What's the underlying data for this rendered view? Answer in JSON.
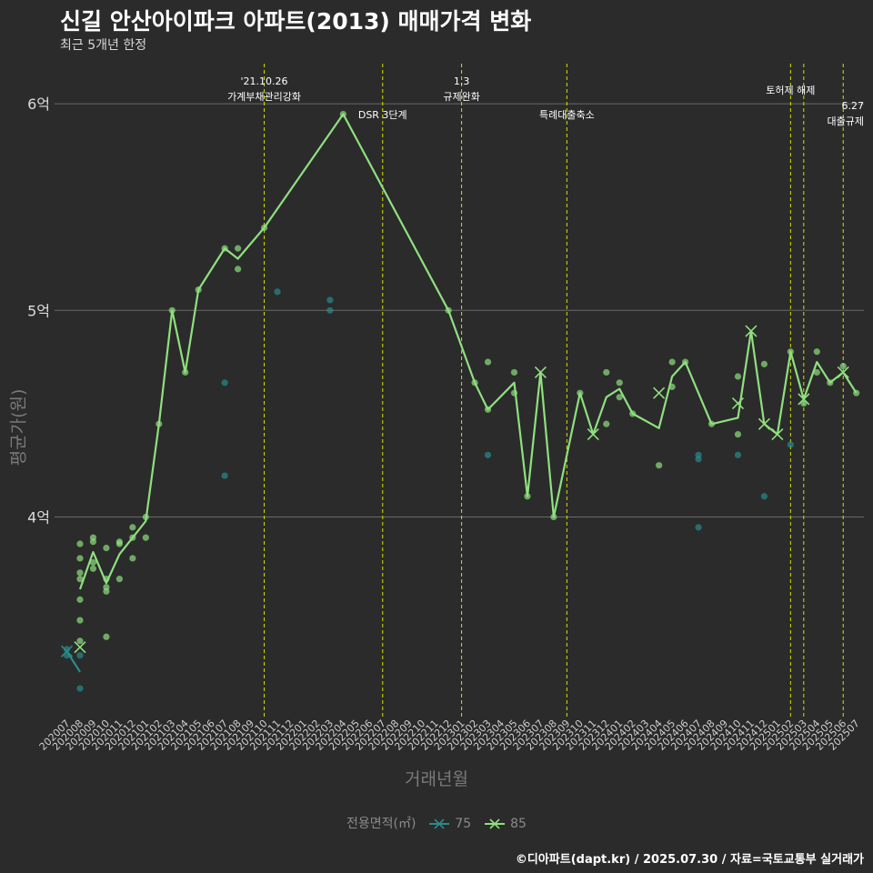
{
  "title": "신길 안산아이파크 아파트(2013) 매매가격 변화",
  "subtitle": "최근 5개년 한정",
  "caption": "©디아파트(dapt.kr) / 2025.07.30 / 자료=국토교통부 실거래가",
  "legend": {
    "title": "전용면적(㎡)",
    "items": [
      "75",
      "85"
    ]
  },
  "colors": {
    "background": "#2b2b2b",
    "series75": "#2a8b8b",
    "series85": "#8fe07f",
    "events": "#d4e000",
    "grid": "#6a6a6a"
  },
  "chart_data": {
    "type": "line",
    "xlabel": "거래년월",
    "ylabel": "평균가(원)",
    "x_categories": [
      "202007",
      "202008",
      "202009",
      "202010",
      "202011",
      "202012",
      "202101",
      "202102",
      "202103",
      "202104",
      "202105",
      "202106",
      "202107",
      "202108",
      "202109",
      "202110",
      "202111",
      "202112",
      "202201",
      "202202",
      "202203",
      "202204",
      "202205",
      "202206",
      "202207",
      "202208",
      "202209",
      "202210",
      "202211",
      "202212",
      "202301",
      "202302",
      "202303",
      "202304",
      "202305",
      "202306",
      "202307",
      "202308",
      "202309",
      "202310",
      "202311",
      "202312",
      "202401",
      "202402",
      "202403",
      "202404",
      "202405",
      "202406",
      "202407",
      "202408",
      "202409",
      "202410",
      "202411",
      "202412",
      "202501",
      "202502",
      "202503",
      "202504",
      "202505",
      "202506",
      "202507"
    ],
    "y_range": [
      3.0,
      6.2
    ],
    "y_ticks": [
      {
        "value": 4,
        "label": "4억"
      },
      {
        "value": 5,
        "label": "5억"
      },
      {
        "value": 6,
        "label": "6억"
      }
    ],
    "y_unit": "억원",
    "grid": true,
    "legend_position": "bottom",
    "series": [
      {
        "name": "75",
        "line": [
          [
            "202007",
            3.35
          ],
          [
            "202008",
            3.25
          ]
        ],
        "cross_markers": [
          [
            "202007",
            3.35
          ]
        ],
        "points": [
          [
            "202007",
            3.33
          ],
          [
            "202007",
            3.36
          ],
          [
            "202008",
            3.33
          ],
          [
            "202008",
            3.17
          ],
          [
            "202107",
            4.65
          ],
          [
            "202107",
            4.2
          ],
          [
            "202111",
            5.09
          ],
          [
            "202203",
            5.05
          ],
          [
            "202203",
            5.0
          ],
          [
            "202303",
            4.3
          ],
          [
            "202407",
            4.3
          ],
          [
            "202407",
            4.28
          ],
          [
            "202407",
            3.95
          ],
          [
            "202410",
            4.3
          ],
          [
            "202412",
            4.1
          ],
          [
            "202502",
            4.35
          ]
        ]
      },
      {
        "name": "85",
        "line": [
          [
            "202008",
            3.65
          ],
          [
            "202009",
            3.83
          ],
          [
            "202010",
            3.68
          ],
          [
            "202011",
            3.82
          ],
          [
            "202012",
            3.9
          ],
          [
            "202101",
            3.98
          ],
          [
            "202102",
            4.45
          ],
          [
            "202103",
            5.0
          ],
          [
            "202104",
            4.7
          ],
          [
            "202105",
            5.1
          ],
          [
            "202107",
            5.3
          ],
          [
            "202108",
            5.25
          ],
          [
            "202110",
            5.4
          ],
          [
            "202204",
            5.95
          ],
          [
            "202212",
            5.0
          ],
          [
            "202302",
            4.65
          ],
          [
            "202303",
            4.52
          ],
          [
            "202305",
            4.65
          ],
          [
            "202306",
            4.1
          ],
          [
            "202307",
            4.7
          ],
          [
            "202308",
            4.0
          ],
          [
            "202310",
            4.6
          ],
          [
            "202311",
            4.4
          ],
          [
            "202312",
            4.58
          ],
          [
            "202401",
            4.62
          ],
          [
            "202402",
            4.5
          ],
          [
            "202404",
            4.43
          ],
          [
            "202405",
            4.68
          ],
          [
            "202406",
            4.75
          ],
          [
            "202408",
            4.45
          ],
          [
            "202410",
            4.48
          ],
          [
            "202411",
            4.9
          ],
          [
            "202412",
            4.45
          ],
          [
            "202501",
            4.4
          ],
          [
            "202502",
            4.8
          ],
          [
            "202503",
            4.57
          ],
          [
            "202504",
            4.75
          ],
          [
            "202505",
            4.65
          ],
          [
            "202506",
            4.7
          ],
          [
            "202507",
            4.6
          ]
        ],
        "cross_markers": [
          [
            "202008",
            3.37
          ],
          [
            "202307",
            4.7
          ],
          [
            "202311",
            4.4
          ],
          [
            "202404",
            4.6
          ],
          [
            "202410",
            4.55
          ],
          [
            "202411",
            4.9
          ],
          [
            "202412",
            4.45
          ],
          [
            "202501",
            4.4
          ],
          [
            "202503",
            4.57
          ],
          [
            "202506",
            4.7
          ]
        ],
        "points": [
          [
            "202008",
            3.87
          ],
          [
            "202008",
            3.8
          ],
          [
            "202008",
            3.73
          ],
          [
            "202008",
            3.7
          ],
          [
            "202008",
            3.6
          ],
          [
            "202008",
            3.5
          ],
          [
            "202008",
            3.4
          ],
          [
            "202009",
            3.9
          ],
          [
            "202009",
            3.88
          ],
          [
            "202009",
            3.78
          ],
          [
            "202009",
            3.75
          ],
          [
            "202010",
            3.85
          ],
          [
            "202010",
            3.7
          ],
          [
            "202010",
            3.66
          ],
          [
            "202010",
            3.64
          ],
          [
            "202010",
            3.42
          ],
          [
            "202011",
            3.88
          ],
          [
            "202011",
            3.87
          ],
          [
            "202011",
            3.7
          ],
          [
            "202012",
            3.95
          ],
          [
            "202012",
            3.9
          ],
          [
            "202012",
            3.8
          ],
          [
            "202101",
            4.0
          ],
          [
            "202101",
            3.9
          ],
          [
            "202102",
            4.45
          ],
          [
            "202103",
            5.0
          ],
          [
            "202104",
            4.7
          ],
          [
            "202105",
            5.1
          ],
          [
            "202107",
            5.3
          ],
          [
            "202108",
            5.3
          ],
          [
            "202108",
            5.2
          ],
          [
            "202110",
            5.4
          ],
          [
            "202204",
            5.95
          ],
          [
            "202212",
            5.0
          ],
          [
            "202302",
            4.65
          ],
          [
            "202303",
            4.75
          ],
          [
            "202303",
            4.52
          ],
          [
            "202305",
            4.7
          ],
          [
            "202305",
            4.6
          ],
          [
            "202306",
            4.1
          ],
          [
            "202308",
            4.0
          ],
          [
            "202310",
            4.6
          ],
          [
            "202312",
            4.7
          ],
          [
            "202312",
            4.45
          ],
          [
            "202401",
            4.65
          ],
          [
            "202401",
            4.58
          ],
          [
            "202402",
            4.5
          ],
          [
            "202404",
            4.25
          ],
          [
            "202405",
            4.75
          ],
          [
            "202405",
            4.63
          ],
          [
            "202406",
            4.75
          ],
          [
            "202408",
            4.45
          ],
          [
            "202410",
            4.68
          ],
          [
            "202410",
            4.4
          ],
          [
            "202412",
            4.74
          ],
          [
            "202502",
            4.8
          ],
          [
            "202503",
            4.55
          ],
          [
            "202504",
            4.8
          ],
          [
            "202504",
            4.7
          ],
          [
            "202505",
            4.65
          ],
          [
            "202506",
            4.73
          ],
          [
            "202507",
            4.6
          ]
        ]
      }
    ],
    "events": [
      {
        "x": "202110",
        "label": [
          "'21.10.26",
          "가계부채관리강화"
        ],
        "row": 0
      },
      {
        "x": "202207",
        "label": [
          "DSR 3단계"
        ],
        "row": 1
      },
      {
        "x": "202301",
        "label": [
          "1.3",
          "규제완화"
        ],
        "row": 0
      },
      {
        "x": "202309",
        "label": [
          "특례대출축소"
        ],
        "row": 1
      },
      {
        "x": "202502",
        "label": [
          "토허제 해제"
        ],
        "row": 0
      },
      {
        "x": "202503",
        "label": [],
        "row": 0
      },
      {
        "x": "202506",
        "label": [
          "6.27",
          "대출규제"
        ],
        "row": 2
      }
    ]
  }
}
